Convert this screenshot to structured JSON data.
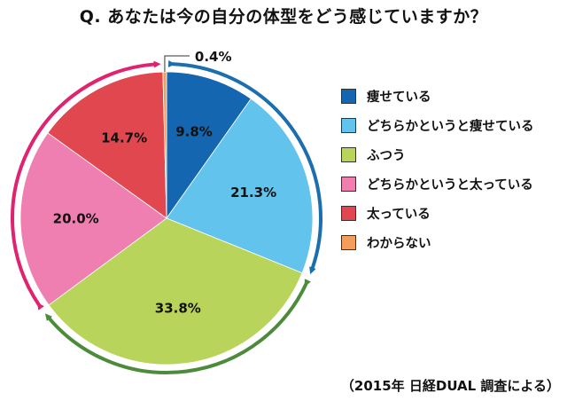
{
  "chart_data": {
    "type": "pie",
    "title": "Q. あなたは今の自分の体型をどう感じていますか？",
    "categories": [
      "痩せている",
      "どちらかというと痩せている",
      "ふつう",
      "どちらかというと太っている",
      "太っている",
      "わからない"
    ],
    "values": [
      9.8,
      21.3,
      33.8,
      20.0,
      14.7,
      0.4
    ],
    "data_labels": [
      "9.8%",
      "21.3%",
      "33.8%",
      "20.0%",
      "14.7%",
      "0.4%"
    ],
    "colors": [
      "#1566b0",
      "#62c4ec",
      "#b9d45a",
      "#ef7fb1",
      "#e1474f",
      "#f59d5a"
    ],
    "legend_position": "right",
    "annotations": {
      "arrow_thin_color": "#1b6fae",
      "arrow_fat_color": "#e0236f",
      "arrow_normal_color": "#4c8b3c"
    },
    "source": "（2015年 日経DUAL 調査による）"
  }
}
